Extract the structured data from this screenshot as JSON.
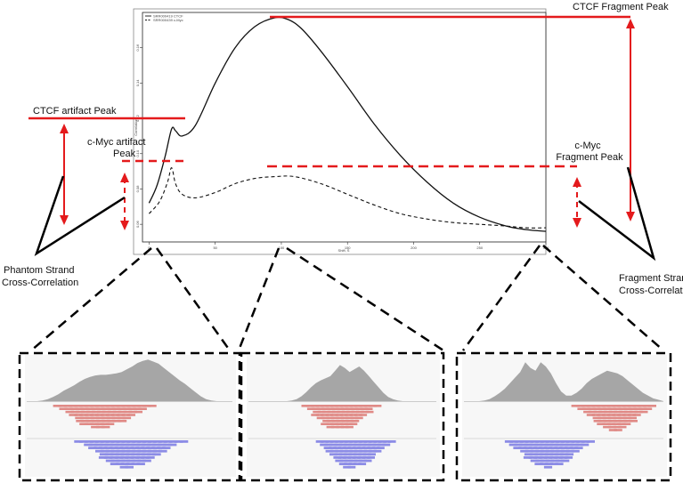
{
  "labels": {
    "ctcf_fragment_peak": "CTCF  Fragment Peak",
    "ctcf_artifact_peak": "CTCF  artifact Peak",
    "cmyc_artifact_peak_line1": "c-Myc artifact",
    "cmyc_artifact_peak_line2": "Peak",
    "cmyc_fragment_peak_line1": "c-Myc",
    "cmyc_fragment_peak_line2": "Fragment Peak",
    "phantom_line1": "Phantom Strand",
    "phantom_line2": "Cross-Correlation",
    "fragment_line1": "Fragment Strand",
    "fragment_line2": "Cross-Correlation"
  },
  "plot": {
    "legend": [
      "SRR000419 CTCF",
      "SRR000439 c-Myc"
    ],
    "xlabel": "Shift, S",
    "ylabel": "Correlation",
    "x_ticks": [
      "0",
      "50",
      "100",
      "150",
      "200",
      "250",
      "300"
    ],
    "y_ticks": [
      "0.06",
      "0.08",
      "0.10",
      "0.12",
      "0.14",
      "0.16"
    ]
  },
  "colors": {
    "accent": "#e41a1c",
    "curve": "#111111",
    "coverage": "#a6a6a6",
    "forward_reads": "#e08a86",
    "reverse_reads": "#8c8ce6"
  },
  "chart_data": {
    "type": "line",
    "title": "",
    "xlabel": "Shift, S",
    "ylabel": "Correlation",
    "xlim": [
      -5,
      300
    ],
    "ylim": [
      0.05,
      0.18
    ],
    "legend_position": "top-left",
    "series": [
      {
        "name": "SRR000419 CTCF",
        "style": "solid",
        "x": [
          0,
          6,
          12,
          17,
          20,
          25,
          35,
          50,
          65,
          80,
          95,
          105,
          115,
          130,
          150,
          170,
          190,
          210,
          230,
          250,
          270,
          285,
          300
        ],
        "y": [
          0.072,
          0.082,
          0.098,
          0.114,
          0.113,
          0.11,
          0.116,
          0.14,
          0.16,
          0.172,
          0.177,
          0.176,
          0.171,
          0.158,
          0.138,
          0.117,
          0.099,
          0.084,
          0.072,
          0.064,
          0.059,
          0.057,
          0.056
        ]
      },
      {
        "name": "SRR000439 c-Myc",
        "style": "dashed",
        "x": [
          0,
          8,
          14,
          17,
          20,
          25,
          35,
          50,
          65,
          80,
          95,
          110,
          130,
          150,
          170,
          190,
          210,
          230,
          250,
          270,
          285,
          300
        ],
        "y": [
          0.066,
          0.073,
          0.084,
          0.092,
          0.083,
          0.077,
          0.075,
          0.078,
          0.083,
          0.086,
          0.087,
          0.087,
          0.083,
          0.077,
          0.071,
          0.066,
          0.063,
          0.061,
          0.06,
          0.059,
          0.058,
          0.058
        ]
      }
    ]
  },
  "panels": [
    {
      "coverage": [
        0,
        0,
        0,
        1,
        3,
        6,
        10,
        15,
        19,
        23,
        28,
        32,
        35,
        37,
        38,
        38,
        39,
        40,
        42,
        46,
        50,
        55,
        58,
        60,
        57,
        54,
        48,
        42,
        36,
        30,
        25,
        19,
        13,
        7,
        3,
        1,
        0,
        0,
        0,
        0
      ],
      "fwd": [
        0,
        0,
        0,
        0,
        1,
        3,
        6,
        10,
        14,
        18,
        21,
        23,
        24,
        25,
        24,
        22,
        20,
        18,
        15,
        12,
        9,
        6,
        4,
        2,
        1,
        0,
        0,
        0,
        0,
        0,
        0,
        0,
        0,
        0,
        0,
        0,
        0,
        0,
        0,
        0
      ],
      "rev": [
        0,
        0,
        0,
        0,
        0,
        0,
        0,
        0,
        1,
        2,
        4,
        7,
        10,
        14,
        18,
        21,
        24,
        27,
        28,
        28,
        26,
        24,
        21,
        18,
        15,
        12,
        9,
        6,
        4,
        2,
        1,
        0,
        0,
        0,
        0,
        0,
        0,
        0,
        0,
        0
      ]
    },
    {
      "coverage": [
        0,
        0,
        0,
        0,
        0,
        0,
        0,
        0,
        0,
        1,
        3,
        7,
        13,
        20,
        26,
        30,
        33,
        36,
        44,
        52,
        48,
        42,
        46,
        50,
        44,
        36,
        28,
        20,
        12,
        6,
        3,
        1,
        0,
        0,
        0,
        0,
        0,
        0,
        0,
        0
      ],
      "fwd": [
        0,
        0,
        0,
        0,
        0,
        0,
        0,
        0,
        0,
        0,
        1,
        3,
        7,
        12,
        17,
        21,
        24,
        26,
        27,
        26,
        24,
        21,
        17,
        12,
        8,
        4,
        2,
        1,
        0,
        0,
        0,
        0,
        0,
        0,
        0,
        0,
        0,
        0,
        0,
        0
      ],
      "rev": [
        0,
        0,
        0,
        0,
        0,
        0,
        0,
        0,
        0,
        0,
        0,
        0,
        0,
        1,
        3,
        7,
        12,
        17,
        22,
        26,
        28,
        28,
        27,
        25,
        22,
        18,
        14,
        10,
        6,
        3,
        1,
        0,
        0,
        0,
        0,
        0,
        0,
        0,
        0,
        0
      ]
    },
    {
      "coverage": [
        0,
        0,
        0,
        0,
        1,
        3,
        7,
        12,
        18,
        26,
        34,
        42,
        56,
        48,
        44,
        56,
        50,
        40,
        26,
        14,
        8,
        8,
        12,
        18,
        26,
        32,
        36,
        40,
        44,
        42,
        40,
        36,
        30,
        24,
        18,
        12,
        8,
        4,
        2,
        0
      ],
      "fwd": [
        0,
        0,
        0,
        0,
        0,
        0,
        0,
        0,
        0,
        0,
        0,
        0,
        0,
        0,
        0,
        0,
        0,
        0,
        0,
        0,
        0,
        2,
        5,
        9,
        14,
        19,
        23,
        26,
        28,
        28,
        26,
        23,
        19,
        14,
        9,
        5,
        2,
        0,
        0,
        0
      ],
      "rev": [
        0,
        0,
        0,
        0,
        0,
        0,
        0,
        1,
        3,
        6,
        10,
        14,
        18,
        22,
        25,
        27,
        28,
        27,
        25,
        22,
        18,
        14,
        10,
        6,
        3,
        1,
        0,
        0,
        0,
        0,
        0,
        0,
        0,
        0,
        0,
        0,
        0,
        0,
        0,
        0
      ]
    }
  ]
}
